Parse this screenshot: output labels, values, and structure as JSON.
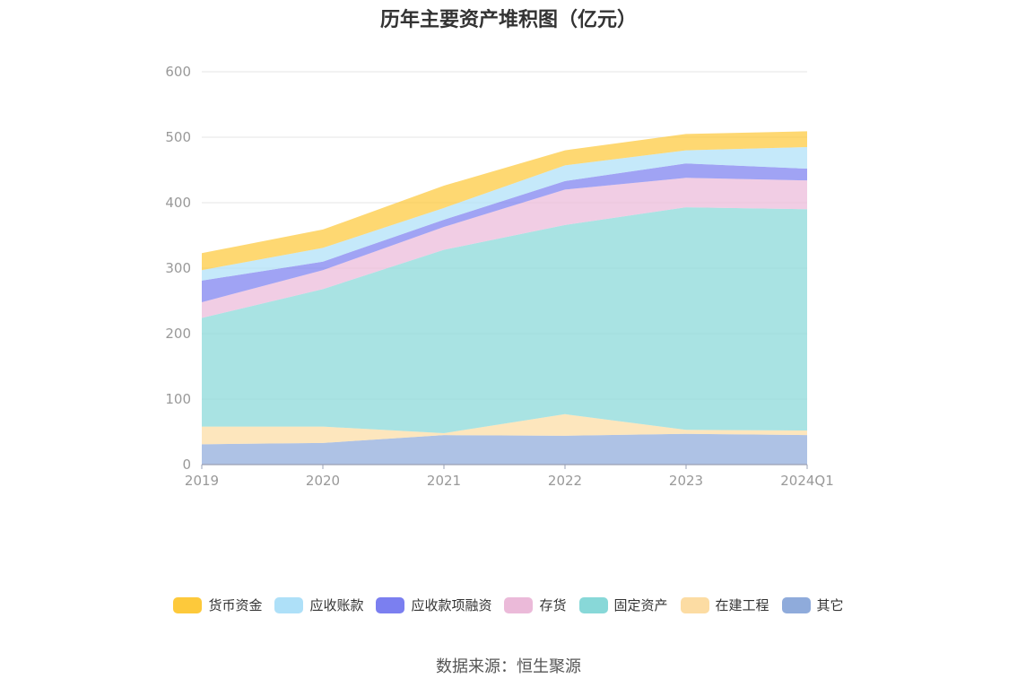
{
  "title": "历年主要资产堆积图（亿元）",
  "source": "数据来源：恒生聚源",
  "chart_data": {
    "type": "area",
    "stacked": true,
    "categories": [
      "2019",
      "2020",
      "2021",
      "2022",
      "2023",
      "2024Q1"
    ],
    "ylim": [
      0,
      600
    ],
    "yticks": [
      0,
      100,
      200,
      300,
      400,
      500,
      600
    ],
    "grid": true,
    "legend_position": "bottom",
    "series": [
      {
        "name": "其它",
        "color": "#8fabdb",
        "values": [
          31,
          33,
          45,
          44,
          47,
          45
        ]
      },
      {
        "name": "在建工程",
        "color": "#fcdca3",
        "values": [
          27,
          25,
          3,
          33,
          6,
          7
        ]
      },
      {
        "name": "固定资产",
        "color": "#88d8d8",
        "values": [
          166,
          210,
          280,
          289,
          340,
          338
        ]
      },
      {
        "name": "存货",
        "color": "#ebbad9",
        "values": [
          24,
          29,
          35,
          54,
          45,
          44
        ]
      },
      {
        "name": "应收款项融资",
        "color": "#7b7ff0",
        "values": [
          33,
          13,
          11,
          13,
          22,
          18
        ]
      },
      {
        "name": "应收账款",
        "color": "#aee0f8",
        "values": [
          16,
          21,
          18,
          24,
          20,
          33
        ]
      },
      {
        "name": "货币资金",
        "color": "#fdc93b",
        "values": [
          26,
          28,
          34,
          23,
          25,
          24
        ]
      }
    ]
  },
  "legend_order": [
    "货币资金",
    "应收账款",
    "应收款项融资",
    "存货",
    "固定资产",
    "在建工程",
    "其它"
  ]
}
